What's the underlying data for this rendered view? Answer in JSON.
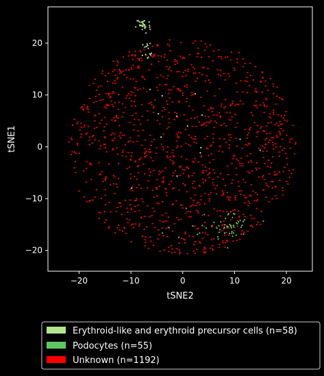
{
  "chart_data": {
    "type": "scatter",
    "xlabel": "tSNE2",
    "ylabel": "tSNE1",
    "xlim": [
      -26,
      25
    ],
    "ylim": [
      -24,
      27
    ],
    "xticks": [
      -20,
      -10,
      0,
      10,
      20
    ],
    "yticks": [
      -20,
      -10,
      0,
      10,
      20
    ],
    "tick_labels": {
      "x": [
        "−20",
        "−10",
        "0",
        "10",
        "20"
      ],
      "y": [
        "−20",
        "−10",
        "0",
        "10",
        "20"
      ]
    },
    "grid": false,
    "legend_position": "bottom",
    "series": [
      {
        "name": "Erythroid-like and erythroid precursor cells (n=58)",
        "color": "#b3e68f",
        "clusters": [
          {
            "cx": -7.6,
            "cy": 23.4,
            "sx": 0.7,
            "sy": 0.8,
            "n": 30
          },
          {
            "cx": -6.6,
            "cy": 18.6,
            "sx": 0.7,
            "sy": 1.0,
            "n": 14
          },
          {
            "cx": 0.0,
            "cy": 4.0,
            "sx": 7.0,
            "sy": 7.5,
            "n": 14
          }
        ]
      },
      {
        "name": "Podocytes (n=55)",
        "color": "#5ec962",
        "clusters": [
          {
            "cx": 9.0,
            "cy": -15.5,
            "sx": 1.8,
            "sy": 1.4,
            "n": 38
          },
          {
            "cx": 6.0,
            "cy": -14.5,
            "sx": 4.0,
            "sy": 1.8,
            "n": 17
          }
        ]
      },
      {
        "name": "Unknown (n=1192)",
        "color": "#ff0000",
        "clusters": [
          {
            "cx": 0.0,
            "cy": 0.0,
            "sx": 8.5,
            "sy": 8.5,
            "n": 1192
          }
        ]
      }
    ]
  }
}
